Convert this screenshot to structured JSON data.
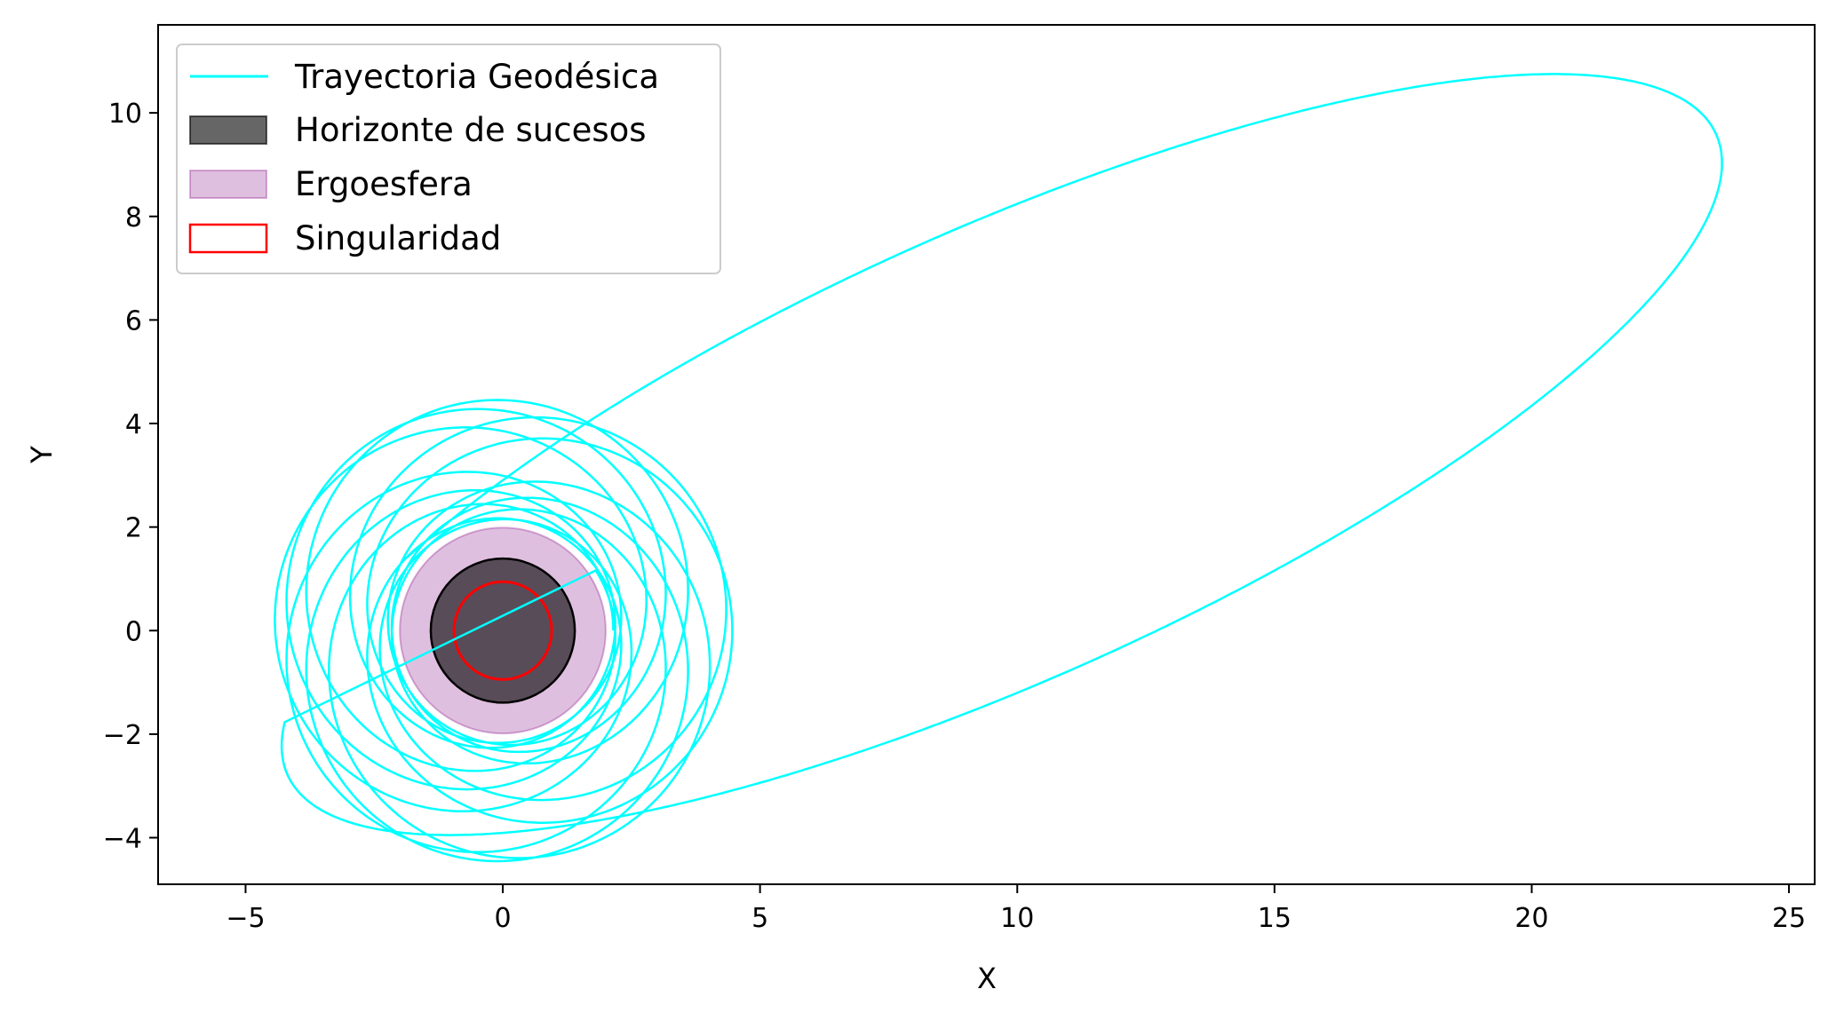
{
  "chart_data": {
    "type": "line",
    "title": "",
    "xlabel": "X",
    "ylabel": "Y",
    "xlim": [
      -6.7,
      25.5
    ],
    "ylim": [
      -4.9,
      11.7
    ],
    "xticks": [
      {
        "value": -5,
        "label": "−5"
      },
      {
        "value": 0,
        "label": "0"
      },
      {
        "value": 5,
        "label": "5"
      },
      {
        "value": 10,
        "label": "10"
      },
      {
        "value": 15,
        "label": "15"
      },
      {
        "value": 20,
        "label": "20"
      },
      {
        "value": 25,
        "label": "25"
      }
    ],
    "yticks": [
      {
        "value": -4,
        "label": "−4"
      },
      {
        "value": -2,
        "label": "−2"
      },
      {
        "value": 0,
        "label": "0"
      },
      {
        "value": 2,
        "label": "2"
      },
      {
        "value": 4,
        "label": "4"
      },
      {
        "value": 6,
        "label": "6"
      },
      {
        "value": 8,
        "label": "8"
      },
      {
        "value": 10,
        "label": "10"
      }
    ],
    "grid": false,
    "legend_position": "top-left",
    "series": [
      {
        "name": "Trayectoria Geodésica",
        "kind": "line",
        "color": "#00ffff",
        "orbit_model": {
          "semi_latus_rectum": 2.9,
          "eccentricity_inner": 0.35,
          "precession_per_orbit_deg": 140,
          "inner_loops": 8,
          "outer_apoapsis": 24.0,
          "outer_max_y": 11.0,
          "outer_min_y": -4.2,
          "start": [
            3.0,
            0.0
          ]
        }
      },
      {
        "name": "Horizonte de sucesos",
        "kind": "circle",
        "center": [
          0,
          0
        ],
        "radius": 1.4,
        "fill": "#000000",
        "fill_opacity": 0.6,
        "edge": "#000000"
      },
      {
        "name": "Ergoesfera",
        "kind": "circle",
        "center": [
          0,
          0
        ],
        "radius": 2.0,
        "fill": "#800080",
        "fill_opacity": 0.25,
        "edge": "#800080"
      },
      {
        "name": "Singularidad",
        "kind": "circle",
        "center": [
          0,
          0
        ],
        "radius": 0.95,
        "fill": "none",
        "edge": "#ff0000"
      }
    ]
  }
}
